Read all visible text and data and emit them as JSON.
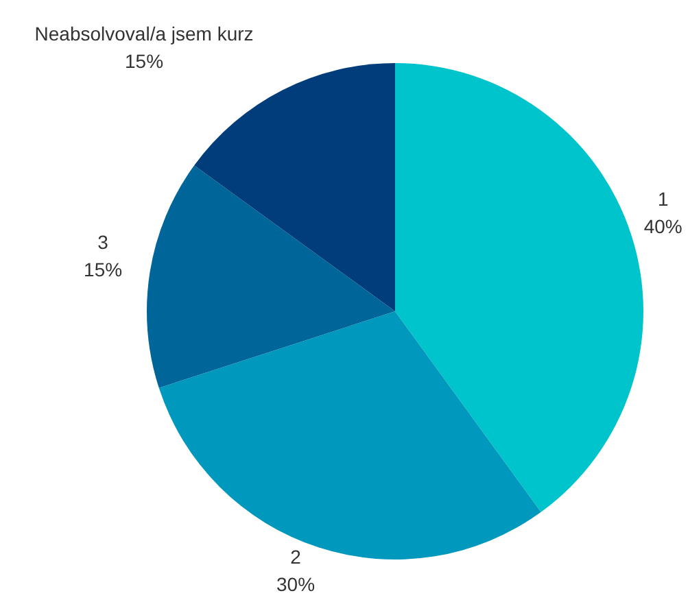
{
  "chart_data": {
    "type": "pie",
    "categories": [
      "1",
      "2",
      "3",
      "Neabsolvoval/a jsem kurz"
    ],
    "values": [
      40,
      30,
      15,
      15
    ],
    "value_labels": [
      "40%",
      "30%",
      "15%",
      "15%"
    ],
    "colors": [
      "#00c4cc",
      "#0099bd",
      "#006699",
      "#003d7a"
    ],
    "legend": false
  }
}
